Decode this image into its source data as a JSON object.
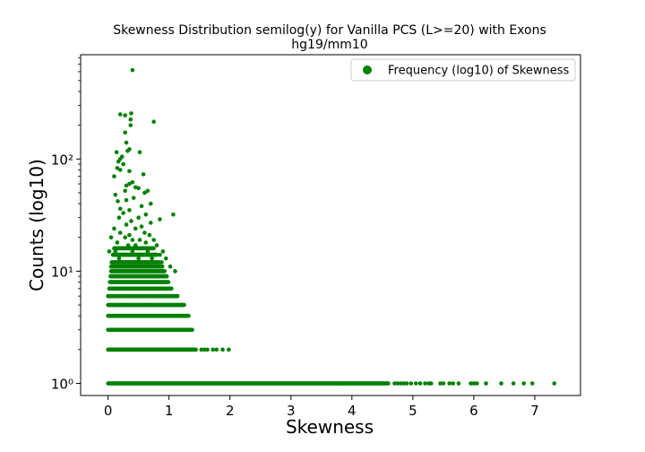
{
  "chart_data": {
    "type": "scatter",
    "title": "Skewness Distribution semilog(y) for Vanilla PCS (L>=20) with Exons",
    "subtitle": "hg19/mm10",
    "xlabel": "Skewness",
    "ylabel": "Counts (log10)",
    "xlim": [
      -0.45,
      7.75
    ],
    "ylim": [
      0.78,
      850
    ],
    "yscale": "log",
    "grid": false,
    "legend_position": "top-right",
    "x_ticks": [
      0,
      1,
      2,
      3,
      4,
      5,
      6,
      7
    ],
    "y_ticks": [
      1,
      10,
      100
    ],
    "y_tick_labels": [
      "10⁰",
      "10¹",
      "10²"
    ],
    "series": [
      {
        "name": "Frequency (log10) of Skewness",
        "color": "#008000",
        "marker": "circle",
        "rows": [
          {
            "y": 1,
            "x_min": 0.0,
            "x_max": 4.6
          },
          {
            "y": 2,
            "x_min": 0.0,
            "x_max": 1.45
          },
          {
            "y": 3,
            "x_min": 0.0,
            "x_max": 1.38
          },
          {
            "y": 4,
            "x_min": 0.0,
            "x_max": 1.32
          },
          {
            "y": 5,
            "x_min": 0.0,
            "x_max": 1.25
          },
          {
            "y": 6,
            "x_min": 0.0,
            "x_max": 1.15
          },
          {
            "y": 7,
            "x_min": 0.02,
            "x_max": 1.05
          },
          {
            "y": 8,
            "x_min": 0.03,
            "x_max": 1.0
          },
          {
            "y": 9,
            "x_min": 0.04,
            "x_max": 0.97
          },
          {
            "y": 10,
            "x_min": 0.05,
            "x_max": 0.93
          },
          {
            "y": 11,
            "x_min": 0.05,
            "x_max": 0.9
          },
          {
            "y": 12,
            "x_min": 0.06,
            "x_max": 0.85
          },
          {
            "y": 14,
            "x_min": 0.08,
            "x_max": 0.8
          },
          {
            "y": 16,
            "x_min": 0.1,
            "x_max": 0.75
          }
        ],
        "points": [
          [
            1.98,
            2
          ],
          [
            1.88,
            2
          ],
          [
            1.78,
            2
          ],
          [
            1.72,
            2
          ],
          [
            1.63,
            2
          ],
          [
            1.58,
            2
          ],
          [
            1.53,
            2
          ],
          [
            4.7,
            1
          ],
          [
            4.75,
            1
          ],
          [
            4.8,
            1
          ],
          [
            4.85,
            1
          ],
          [
            4.9,
            1
          ],
          [
            4.97,
            1
          ],
          [
            5.05,
            1
          ],
          [
            5.12,
            1
          ],
          [
            5.2,
            1
          ],
          [
            5.26,
            1
          ],
          [
            5.3,
            1
          ],
          [
            5.45,
            1
          ],
          [
            5.5,
            1
          ],
          [
            5.6,
            1
          ],
          [
            5.66,
            1
          ],
          [
            5.75,
            1
          ],
          [
            5.95,
            1
          ],
          [
            6.0,
            1
          ],
          [
            6.05,
            1
          ],
          [
            6.2,
            1
          ],
          [
            6.45,
            1
          ],
          [
            6.65,
            1
          ],
          [
            6.82,
            1
          ],
          [
            6.96,
            1
          ],
          [
            7.32,
            1
          ],
          [
            0.4,
            620
          ],
          [
            0.38,
            255
          ],
          [
            0.2,
            250
          ],
          [
            0.28,
            245
          ],
          [
            0.37,
            225
          ],
          [
            0.75,
            215
          ],
          [
            0.37,
            200
          ],
          [
            0.28,
            172
          ],
          [
            0.3,
            140
          ],
          [
            0.35,
            122
          ],
          [
            0.32,
            118
          ],
          [
            0.14,
            115
          ],
          [
            0.52,
            115
          ],
          [
            0.23,
            105
          ],
          [
            0.2,
            100
          ],
          [
            0.17,
            95
          ],
          [
            0.25,
            90
          ],
          [
            0.15,
            83
          ],
          [
            0.2,
            80
          ],
          [
            0.35,
            78
          ],
          [
            0.58,
            73
          ],
          [
            0.1,
            70
          ],
          [
            0.4,
            62
          ],
          [
            0.35,
            60
          ],
          [
            0.3,
            58
          ],
          [
            0.45,
            56
          ],
          [
            0.5,
            55
          ],
          [
            0.28,
            52
          ],
          [
            0.65,
            52
          ],
          [
            0.6,
            50
          ],
          [
            0.12,
            48
          ],
          [
            0.42,
            45
          ],
          [
            0.3,
            43
          ],
          [
            0.16,
            42
          ],
          [
            0.7,
            40
          ],
          [
            0.55,
            38
          ],
          [
            0.2,
            36
          ],
          [
            0.35,
            35
          ],
          [
            0.25,
            33
          ],
          [
            1.07,
            32
          ],
          [
            0.62,
            32
          ],
          [
            0.18,
            30
          ],
          [
            0.5,
            30
          ],
          [
            0.85,
            29
          ],
          [
            0.38,
            28
          ],
          [
            0.7,
            27
          ],
          [
            0.3,
            26
          ],
          [
            0.55,
            25
          ],
          [
            0.1,
            24
          ],
          [
            0.45,
            24
          ],
          [
            0.2,
            22
          ],
          [
            0.6,
            22
          ],
          [
            0.35,
            21
          ],
          [
            0.68,
            21
          ],
          [
            0.05,
            20
          ],
          [
            0.28,
            20
          ],
          [
            0.4,
            19
          ],
          [
            0.52,
            19
          ],
          [
            0.75,
            19
          ],
          [
            0.15,
            18
          ],
          [
            0.62,
            18
          ],
          [
            0.33,
            17
          ],
          [
            0.45,
            17
          ],
          [
            0.8,
            17
          ],
          [
            0.22,
            16
          ],
          [
            0.55,
            16
          ],
          [
            0.9,
            15
          ],
          [
            0.02,
            15
          ],
          [
            0.12,
            15
          ],
          [
            0.4,
            15
          ],
          [
            0.65,
            15
          ],
          [
            0.85,
            14
          ],
          [
            0.3,
            14
          ],
          [
            0.5,
            13
          ],
          [
            0.95,
            13
          ],
          [
            0.18,
            13
          ],
          [
            0.72,
            13
          ],
          [
            0.6,
            12
          ],
          [
            0.38,
            12
          ],
          [
            0.88,
            12
          ],
          [
            1.02,
            11
          ],
          [
            0.25,
            11
          ],
          [
            0.78,
            11
          ],
          [
            1.1,
            10
          ]
        ]
      }
    ]
  }
}
